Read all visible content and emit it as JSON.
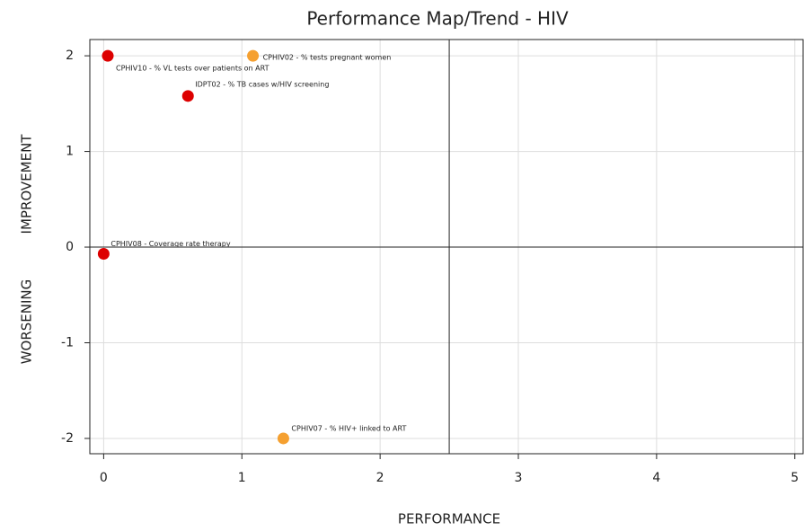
{
  "chart_data": {
    "type": "scatter",
    "title": "Performance Map/Trend - HIV",
    "xlabel": "PERFORMANCE",
    "ylabel_top": "IMPROVEMENT",
    "ylabel_bottom": "WORSENING",
    "labels": [
      "CPHIV10 - % VL tests over patients on ART",
      "CPHIV02 - % tests pregnant women",
      "IDPT02 - % TB cases w/HIV screening",
      "CPHIV08 - Coverage rate therapy",
      "CPHIV07 - % HIV+ linked to ART"
    ],
    "x": [
      0.03,
      1.08,
      0.61,
      0,
      1.3
    ],
    "values": [
      2,
      2,
      1.58,
      -0.07,
      -2
    ],
    "colors": [
      "#dd0000",
      "#f5a030",
      "#dd0000",
      "#dd0000",
      "#f5a030"
    ],
    "xlim": [
      -0.1,
      5.06
    ],
    "ylim": [
      -2.16,
      2.17
    ],
    "xticks": [
      0,
      1,
      2,
      3,
      4,
      5
    ],
    "yticks": [
      -2,
      -1,
      0,
      1,
      2
    ],
    "reference_x": 2.5,
    "reference_y": 0,
    "grid": true
  }
}
